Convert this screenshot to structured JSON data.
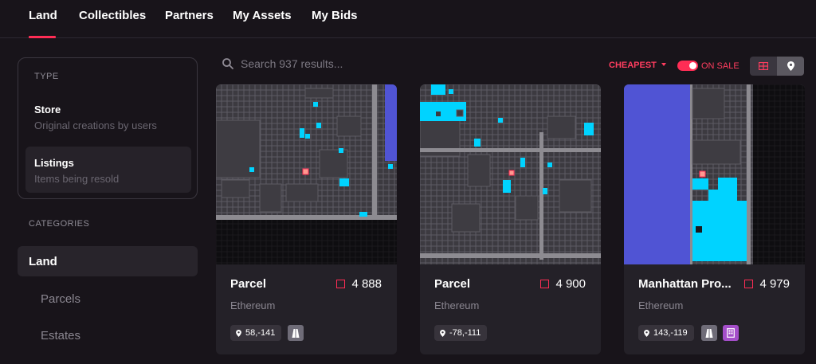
{
  "nav": {
    "tabs": [
      {
        "label": "Land"
      },
      {
        "label": "Collectibles"
      },
      {
        "label": "Partners"
      },
      {
        "label": "My Assets"
      },
      {
        "label": "My Bids"
      }
    ],
    "active": "Land"
  },
  "sidebar": {
    "type_heading": "TYPE",
    "types": [
      {
        "title": "Store",
        "subtitle": "Original creations by users"
      },
      {
        "title": "Listings",
        "subtitle": "Items being resold"
      }
    ],
    "categories_heading": "CATEGORIES",
    "categories": [
      {
        "label": "Land"
      },
      {
        "label": "Parcels"
      },
      {
        "label": "Estates"
      }
    ]
  },
  "search": {
    "placeholder": "Search 937 results...",
    "value": ""
  },
  "filters": {
    "sort_label": "CHEAPEST",
    "on_sale_label": "ON SALE",
    "on_sale": true
  },
  "cards": [
    {
      "name": "Parcel",
      "price": "4 888",
      "network": "Ethereum",
      "coords": "58,-141",
      "badges": [
        "road-icon"
      ]
    },
    {
      "name": "Parcel",
      "price": "4 900",
      "network": "Ethereum",
      "coords": "-78,-111",
      "badges": []
    },
    {
      "name": "Manhattan Pro...",
      "price": "4 979",
      "network": "Ethereum",
      "coords": "143,-119",
      "badges": [
        "road-icon",
        "district-icon"
      ]
    }
  ],
  "colors": {
    "accent": "#ff2d55",
    "background": "#18141a",
    "card": "#242128",
    "map_owned": "#00d3ff",
    "map_plaza": "#5054d4",
    "map_selected": "#ff9990"
  }
}
